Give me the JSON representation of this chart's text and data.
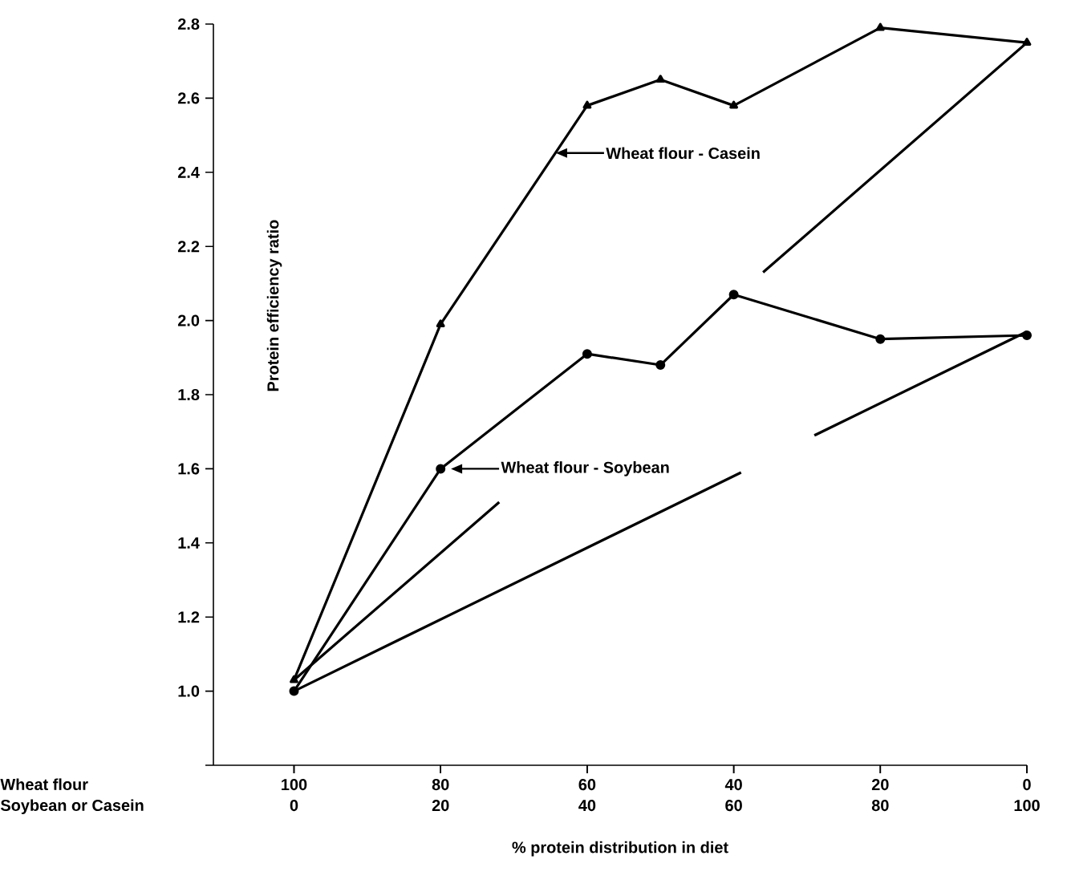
{
  "chart_data": {
    "type": "line",
    "xlabel": "% protein distribution in diet",
    "ylabel": "Protein efficiency ratio",
    "xlim": [
      -11,
      100
    ],
    "xticks": [
      0,
      20,
      40,
      60,
      80,
      100
    ],
    "x2lim": [
      111,
      0
    ],
    "x2ticks": [
      100,
      80,
      60,
      40,
      20,
      0
    ],
    "ylim": [
      0.8,
      2.8
    ],
    "yticks": [
      {
        "value": 0.8,
        "label": null
      },
      {
        "value": 1,
        "label": "1.0"
      },
      1.2,
      1.4,
      1.6,
      1.8,
      {
        "value": 2,
        "label": "2.0"
      },
      2.2,
      2.4,
      2.6,
      2.8
    ],
    "series": [
      {
        "color": "#000000",
        "marker": "triangle",
        "x": [
          0,
          20,
          40,
          50,
          60,
          80,
          100
        ],
        "values": [
          1.03,
          1.99,
          2.58,
          2.65,
          2.58,
          2.79,
          2.75
        ]
      },
      {
        "color": "#000000",
        "marker": "circle",
        "x": [
          0,
          20,
          40,
          50,
          60,
          80,
          100
        ],
        "values": [
          1.0,
          1.6,
          1.91,
          1.88,
          2.07,
          1.95,
          1.96
        ]
      },
      {
        "color": "#000000",
        "marker": "none",
        "x": [
          0,
          28,
          null,
          64,
          100
        ],
        "values": [
          1.03,
          1.51,
          null,
          2.13,
          2.75
        ]
      },
      {
        "color": "#000000",
        "marker": "none",
        "x": [
          0,
          61,
          null,
          71,
          100
        ],
        "values": [
          1.0,
          1.59,
          null,
          1.69,
          1.97
        ]
      }
    ],
    "annotations": [
      "Wheat flour - Casein",
      "Wheat flour - Soybean",
      "Wheat flour",
      "Soybean or Casein"
    ]
  }
}
